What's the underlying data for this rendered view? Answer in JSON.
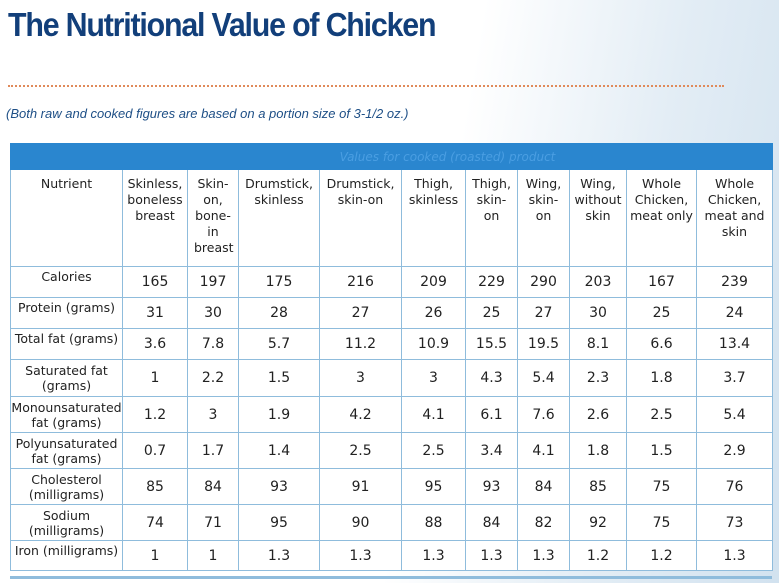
{
  "title": "The Nutritional Value of Chicken",
  "note": "(Both raw and cooked figures are based on a portion size of 3-1/2 oz.)",
  "table": {
    "banner": "Values for cooked (roasted) product",
    "nutrient_header": "Nutrient",
    "columns": [
      "Skinless, boneless breast",
      "Skin-on, bone-in breast",
      "Drumstick, skinless",
      "Drumstick, skin-on",
      "Thigh, skinless",
      "Thigh, skin-on",
      "Wing, skin-on",
      "Wing, without skin",
      "Whole Chicken, meat only",
      "Whole Chicken, meat and skin"
    ],
    "rows": [
      {
        "label": "Calories",
        "values": [
          "165",
          "197",
          "175",
          "216",
          "209",
          "229",
          "290",
          "203",
          "167",
          "239"
        ]
      },
      {
        "label": "Protein (grams)",
        "values": [
          "31",
          "30",
          "28",
          "27",
          "26",
          "25",
          "27",
          "30",
          "25",
          "24"
        ]
      },
      {
        "label": "Total fat (grams)",
        "values": [
          "3.6",
          "7.8",
          "5.7",
          "11.2",
          "10.9",
          "15.5",
          "19.5",
          "8.1",
          "6.6",
          "13.4"
        ]
      },
      {
        "label": "Saturated fat (grams)",
        "values": [
          "1",
          "2.2",
          "1.5",
          "3",
          "3",
          "4.3",
          "5.4",
          "2.3",
          "1.8",
          "3.7"
        ]
      },
      {
        "label": "Monounsaturated fat (grams)",
        "values": [
          "1.2",
          "3",
          "1.9",
          "4.2",
          "4.1",
          "6.1",
          "7.6",
          "2.6",
          "2.5",
          "5.4"
        ]
      },
      {
        "label": "Polyunsaturated fat (grams)",
        "values": [
          "0.7",
          "1.7",
          "1.4",
          "2.5",
          "2.5",
          "3.4",
          "4.1",
          "1.8",
          "1.5",
          "2.9"
        ]
      },
      {
        "label": "Cholesterol (milligrams)",
        "values": [
          "85",
          "84",
          "93",
          "91",
          "95",
          "93",
          "84",
          "85",
          "75",
          "76"
        ]
      },
      {
        "label": "Sodium (milligrams)",
        "values": [
          "74",
          "71",
          "95",
          "90",
          "88",
          "84",
          "82",
          "92",
          "75",
          "73"
        ]
      },
      {
        "label": "Iron (milligrams)",
        "values": [
          "1",
          "1",
          "1.3",
          "1.3",
          "1.3",
          "1.3",
          "1.3",
          "1.2",
          "1.2",
          "1.3"
        ]
      }
    ]
  }
}
